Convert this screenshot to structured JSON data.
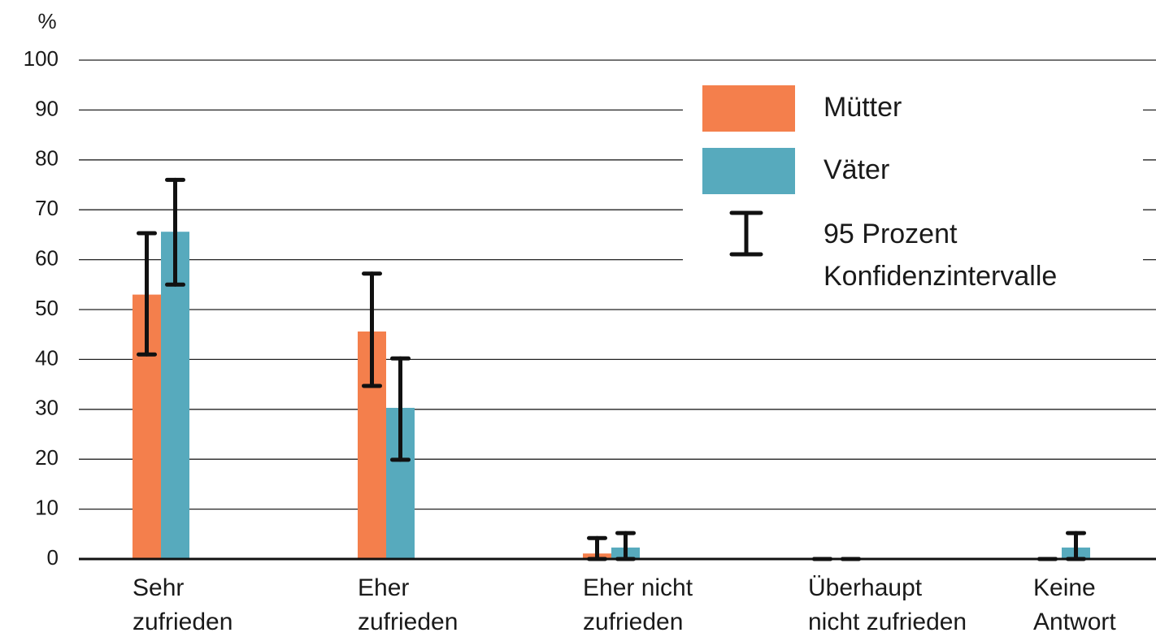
{
  "chart_data": {
    "type": "bar",
    "y_label": "%",
    "categories": [
      [
        "Sehr",
        "zufrieden"
      ],
      [
        "Eher",
        "zufrieden"
      ],
      [
        "Eher nicht",
        "zufrieden"
      ],
      [
        "Überhaupt",
        "nicht zufrieden"
      ],
      [
        "Keine",
        "Antwort"
      ]
    ],
    "series": [
      {
        "name": "Mütter",
        "color": "#f47f4c",
        "values": [
          53,
          45.6,
          1.1,
          0,
          0
        ],
        "ci_low": [
          41,
          34.7,
          0,
          0,
          0
        ],
        "ci_high": [
          65.3,
          57.2,
          4.2,
          0,
          0
        ]
      },
      {
        "name": "Väter",
        "color": "#57aabd",
        "values": [
          65.6,
          30.3,
          2.3,
          0,
          2.3
        ],
        "ci_low": [
          55,
          19.9,
          0,
          0,
          0
        ],
        "ci_high": [
          76,
          40.2,
          5.2,
          0,
          5.2
        ]
      }
    ],
    "ci_label": [
      "95 Prozent",
      "Konfidenzintervalle"
    ],
    "ylim": [
      0,
      100
    ],
    "yticks": [
      0,
      10,
      20,
      30,
      40,
      50,
      60,
      70,
      80,
      90,
      100
    ],
    "grid": true
  }
}
